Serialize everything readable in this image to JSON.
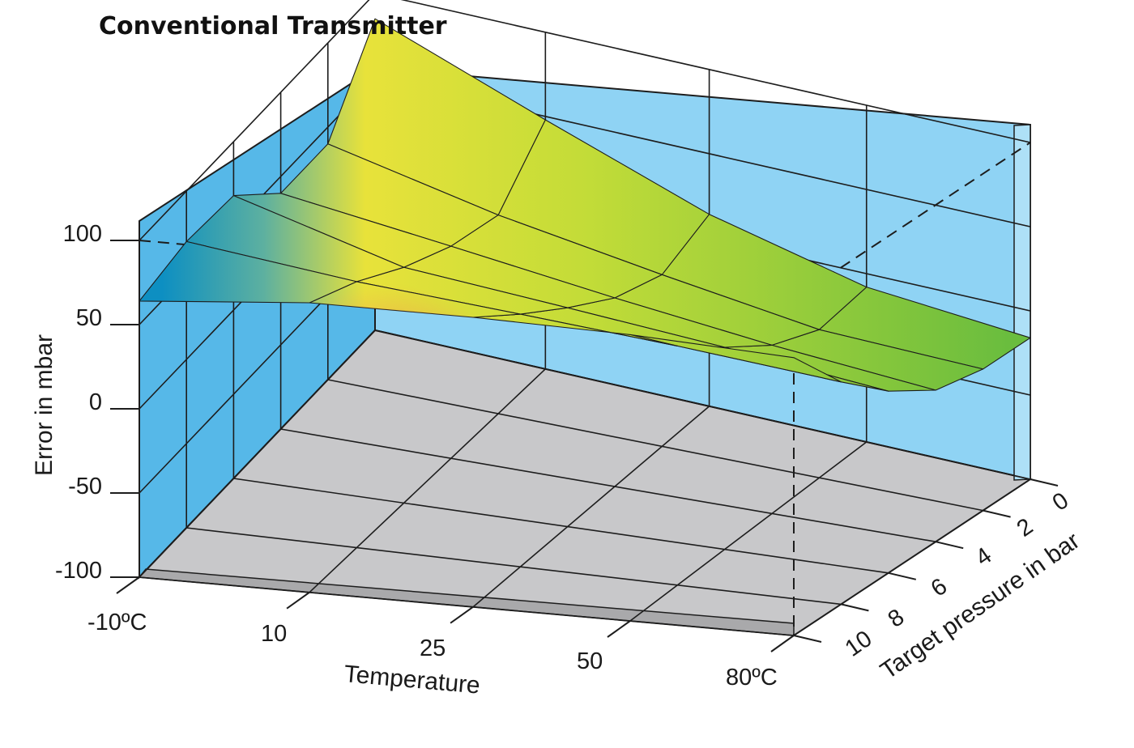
{
  "chart_data": {
    "type": "surface",
    "title": "Conventional Transmitter",
    "xlabel": "Temperature",
    "ylabel": "Error in mbar",
    "zlabel": "Target pressure in bar",
    "x_ticks": [
      "-10ºC",
      "10",
      "25",
      "50",
      "80ºC"
    ],
    "z_ticks": [
      "0",
      "2",
      "4",
      "6",
      "8",
      "10"
    ],
    "y_ticks": [
      "100",
      "50",
      "0",
      "-50",
      "-100"
    ],
    "y_tick_values": [
      100,
      50,
      0,
      -50,
      -100
    ],
    "ylim": [
      -100,
      100
    ],
    "temperature_values": [
      -10,
      10,
      25,
      50,
      80
    ],
    "pressure_values": [
      0,
      2,
      4,
      6,
      8,
      10
    ],
    "error_values_mbar": [
      [
        85,
        40,
        40,
        68,
        70,
        64
      ],
      [
        48,
        18,
        26,
        40,
        58,
        72
      ],
      [
        14,
        2,
        12,
        30,
        50,
        72
      ],
      [
        -8,
        -12,
        0,
        20,
        42,
        70
      ],
      [
        -16,
        -16,
        -10,
        8,
        32,
        65
      ]
    ],
    "colors": {
      "wall_back": "#8fd3f4",
      "wall_left": "#5bbbe8",
      "floor": "#c8c8ca",
      "surface_low": "#e3262b",
      "surface_mid": "#e4e43a",
      "surface_high": "#6dbf3f"
    }
  }
}
